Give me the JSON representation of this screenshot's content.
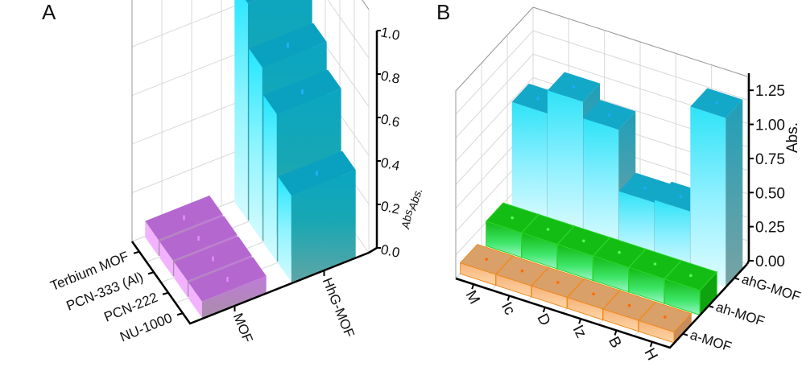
{
  "figure": {
    "panels": [
      "A",
      "B"
    ]
  },
  "chart_data": [
    {
      "type": "bar",
      "subtype": "3d-bar",
      "panel_label": "A",
      "title": "",
      "x_categories": [
        "MOF",
        "HhG-MOF"
      ],
      "y_categories": [
        "Terbium MOF",
        "PCN-333 (Al)",
        "PCN-222",
        "NU-1000"
      ],
      "zlabel": "Abs.",
      "zlim": [
        0.0,
        1.0
      ],
      "z_ticks": [
        "0.0",
        "0.2",
        "0.4",
        "0.6",
        "0.8",
        "1.0"
      ],
      "series": [
        {
          "name": "MOF",
          "color": "#b366cc",
          "values": [
            0.05,
            0.05,
            0.05,
            0.05
          ]
        },
        {
          "name": "HhG-MOF",
          "color": "#00b4d0",
          "values": [
            1.0,
            0.8,
            0.68,
            0.4
          ]
        }
      ],
      "grid": true,
      "legend": "none"
    },
    {
      "type": "bar",
      "subtype": "3d-bar",
      "panel_label": "B",
      "title": "",
      "x_categories": [
        "M",
        "Ic",
        "D",
        "Iz",
        "B",
        "H"
      ],
      "y_categories": [
        "a-MOF",
        "ah-MOF",
        "ahG-MOF"
      ],
      "zlabel": "Abs.",
      "zlim": [
        0.0,
        1.375
      ],
      "z_ticks": [
        "0.00",
        "0.25",
        "0.50",
        "0.75",
        "1.00",
        "1.25"
      ],
      "series": [
        {
          "name": "a-MOF",
          "color": "#e79a54",
          "values": [
            0.08,
            0.08,
            0.08,
            0.08,
            0.08,
            0.08
          ]
        },
        {
          "name": "ah-MOF",
          "color": "#22c422",
          "values": [
            0.18,
            0.18,
            0.18,
            0.18,
            0.18,
            0.18
          ]
        },
        {
          "name": "ahG-MOF",
          "color": "#1fb8d6",
          "values": [
            0.85,
            1.02,
            0.9,
            0.45,
            0.47,
            1.24
          ]
        }
      ],
      "grid": true,
      "legend": "none"
    }
  ]
}
